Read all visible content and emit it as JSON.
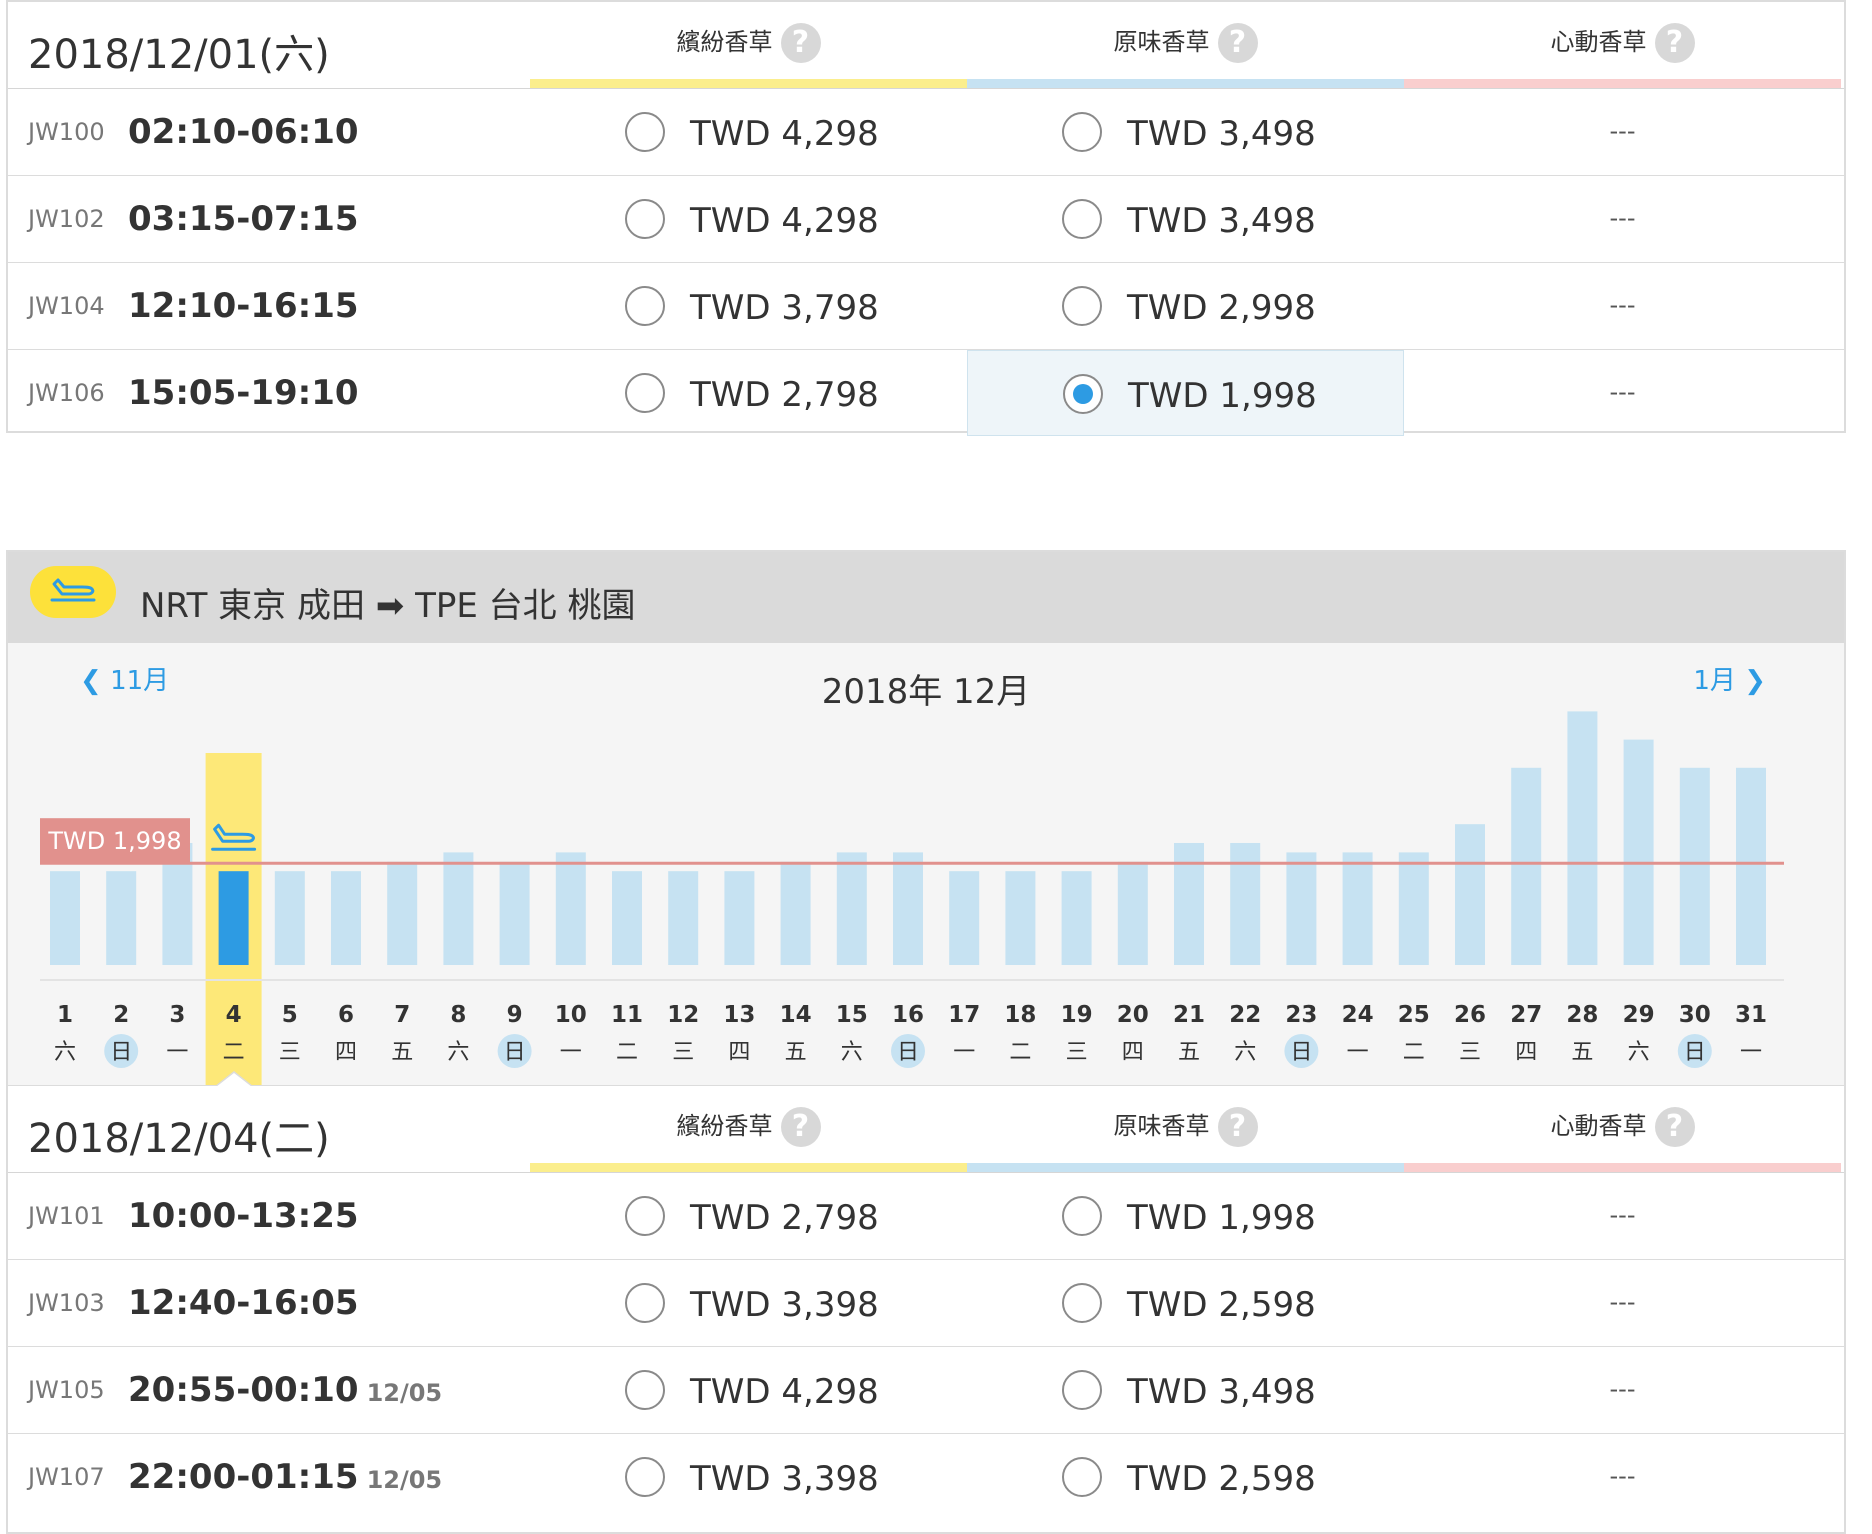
{
  "fare_headers": [
    {
      "label": "繽紛香草",
      "help": "?"
    },
    {
      "label": "原味香草",
      "help": "?"
    },
    {
      "label": "心動香草",
      "help": "?"
    }
  ],
  "outbound": {
    "date_title": "2018/12/01(六)",
    "flights": [
      {
        "no": "JW100",
        "time": "02:10-06:10",
        "next_day": "",
        "fare1": "TWD 4,298",
        "fare2": "TWD 3,498",
        "fare3": "---",
        "selected": ""
      },
      {
        "no": "JW102",
        "time": "03:15-07:15",
        "next_day": "",
        "fare1": "TWD 4,298",
        "fare2": "TWD 3,498",
        "fare3": "---",
        "selected": ""
      },
      {
        "no": "JW104",
        "time": "12:10-16:15",
        "next_day": "",
        "fare1": "TWD 3,798",
        "fare2": "TWD 2,998",
        "fare3": "---",
        "selected": ""
      },
      {
        "no": "JW106",
        "time": "15:05-19:10",
        "next_day": "",
        "fare1": "TWD 2,798",
        "fare2": "TWD 1,998",
        "fare3": "---",
        "selected": "fare2"
      }
    ]
  },
  "return_route": {
    "text": "NRT 東京 成田 ➡ TPE 台北 桃園",
    "icon": "plane-landing-icon",
    "prev_month": "11月",
    "next_month": "1月",
    "month_title": "2018年 12月"
  },
  "chart_data": {
    "type": "bar",
    "selected_day": 4,
    "price_line_label": "TWD 1,998",
    "days": [
      1,
      2,
      3,
      4,
      5,
      6,
      7,
      8,
      9,
      10,
      11,
      12,
      13,
      14,
      15,
      16,
      17,
      18,
      19,
      20,
      21,
      22,
      23,
      24,
      25,
      26,
      27,
      28,
      29,
      30,
      31
    ],
    "weekdays": [
      "六",
      "日",
      "一",
      "二",
      "三",
      "四",
      "五",
      "六",
      "日",
      "一",
      "二",
      "三",
      "四",
      "五",
      "六",
      "日",
      "一",
      "二",
      "三",
      "四",
      "五",
      "六",
      "日",
      "一",
      "二",
      "三",
      "四",
      "五",
      "六",
      "日",
      "一"
    ],
    "values": [
      1998,
      1998,
      2298,
      1998,
      1998,
      1998,
      2098,
      2198,
      2098,
      2198,
      1998,
      1998,
      1998,
      2098,
      2198,
      2198,
      1998,
      1998,
      1998,
      2098,
      2298,
      2298,
      2198,
      2198,
      2198,
      2498,
      3098,
      3698,
      3398,
      3098,
      3098
    ],
    "colors": {
      "bar": "#c6e2f2",
      "selected_bar": "#2d9be3",
      "selected_column": "#fde878",
      "price_line": "#e1918d",
      "sunday_badge": "#c6e2f2"
    }
  },
  "return": {
    "date_title": "2018/12/04(二)",
    "flights": [
      {
        "no": "JW101",
        "time": "10:00-13:25",
        "next_day": "",
        "fare1": "TWD 2,798",
        "fare2": "TWD 1,998",
        "fare3": "---",
        "selected": ""
      },
      {
        "no": "JW103",
        "time": "12:40-16:05",
        "next_day": "",
        "fare1": "TWD 3,398",
        "fare2": "TWD 2,598",
        "fare3": "---",
        "selected": ""
      },
      {
        "no": "JW105",
        "time": "20:55-00:10",
        "next_day": "12/05",
        "fare1": "TWD 4,298",
        "fare2": "TWD 3,498",
        "fare3": "---",
        "selected": ""
      },
      {
        "no": "JW107",
        "time": "22:00-01:15",
        "next_day": "12/05",
        "fare1": "TWD 3,398",
        "fare2": "TWD 2,598",
        "fare3": "---",
        "selected": ""
      }
    ]
  }
}
